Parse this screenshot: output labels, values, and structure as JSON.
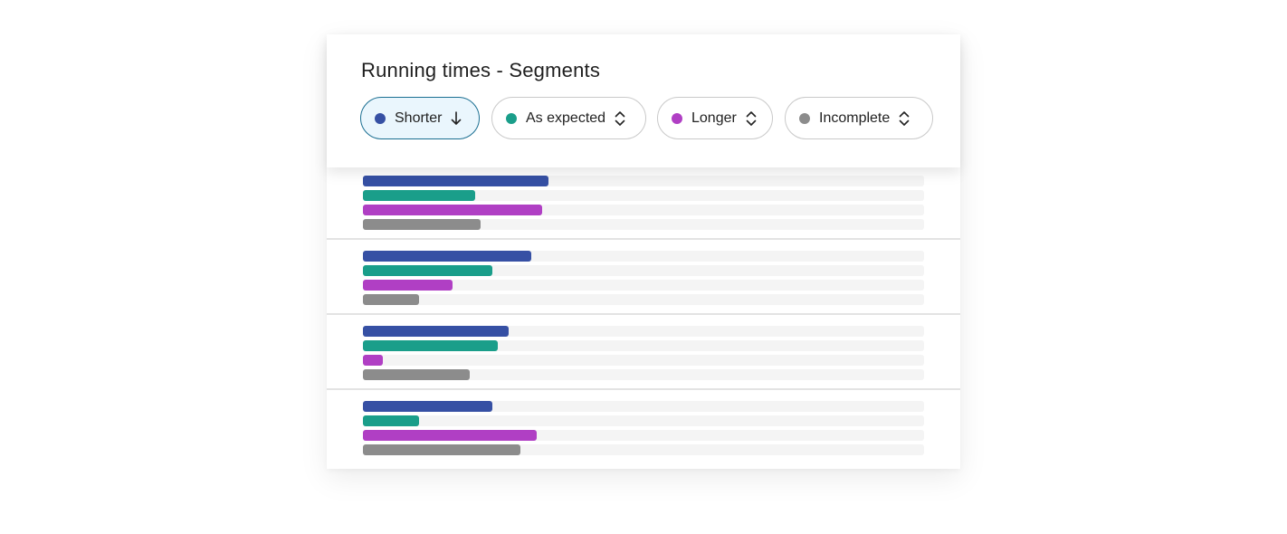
{
  "chart_data": {
    "type": "bar",
    "title": "Running times - Segments",
    "xlim": [
      0,
      100
    ],
    "series": [
      {
        "name": "Shorter",
        "color": "#3650a4",
        "values": [
          33,
          30,
          26,
          23
        ]
      },
      {
        "name": "As expected",
        "color": "#1a9e8a",
        "values": [
          20,
          23,
          24,
          10
        ]
      },
      {
        "name": "Longer",
        "color": "#b03fc4",
        "values": [
          32,
          16,
          3.5,
          31
        ]
      },
      {
        "name": "Incomplete",
        "color": "#8c8c8c",
        "values": [
          21,
          10,
          19,
          28
        ]
      }
    ],
    "sort": {
      "series": "Shorter",
      "direction": "descending"
    },
    "track_color": "#f4f4f4",
    "active_chip_color": "#eaf6fd"
  },
  "chips": [
    {
      "label": "Shorter",
      "color": "#3650a4",
      "icon": "arrow-down-icon",
      "active": true
    },
    {
      "label": "As expected",
      "color": "#1a9e8a",
      "icon": "sort-updown-icon",
      "active": false
    },
    {
      "label": "Longer",
      "color": "#b03fc4",
      "icon": "sort-updown-icon",
      "active": false
    },
    {
      "label": "Incomplete",
      "color": "#8c8c8c",
      "icon": "sort-updown-icon",
      "active": false
    }
  ]
}
